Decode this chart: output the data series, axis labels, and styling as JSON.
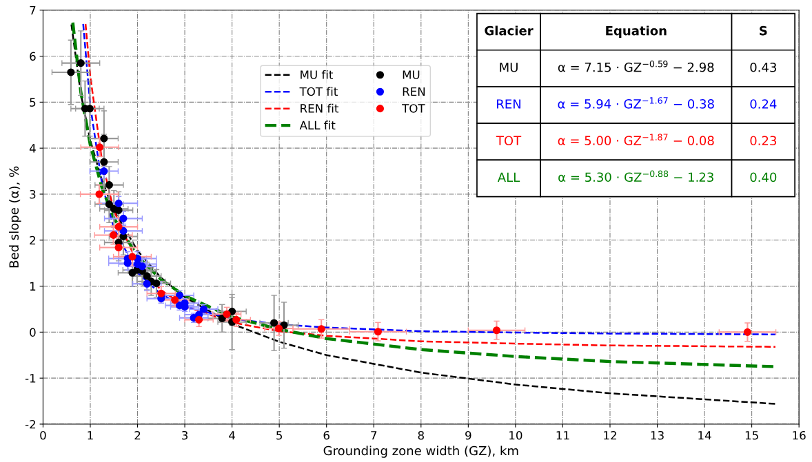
{
  "chart_data": {
    "type": "scatter",
    "xlabel": "Grounding zone width (GZ), km",
    "ylabel": "Bed slope (α), %",
    "xlim": [
      0,
      16
    ],
    "ylim": [
      -2,
      7
    ],
    "xticks": [
      0,
      1,
      2,
      3,
      4,
      5,
      6,
      7,
      8,
      9,
      10,
      11,
      12,
      13,
      14,
      15,
      16
    ],
    "yticks": [
      -2,
      -1,
      0,
      1,
      2,
      3,
      4,
      5,
      6,
      7
    ],
    "grid": true,
    "legend": "top",
    "marker": "circle",
    "series": [
      {
        "name": "MU fit",
        "type": "line",
        "line_style": "dashed",
        "marker": "none",
        "color": "#000000",
        "x": [
          0.6,
          0.8,
          1,
          1.25,
          1.5,
          2,
          2.5,
          3,
          4,
          5,
          6,
          8,
          10,
          12,
          15.5
        ],
        "values": [
          6.69,
          5.18,
          4.17,
          3.29,
          2.65,
          1.77,
          1.18,
          0.76,
          0.18,
          -0.21,
          -0.5,
          -0.88,
          -1.14,
          -1.33,
          -1.56
        ]
      },
      {
        "name": "TOT fit",
        "type": "line",
        "line_style": "dashed",
        "marker": "none",
        "color": "#0000ff",
        "x": [
          0.85,
          1,
          1.25,
          1.5,
          2,
          2.5,
          3,
          4,
          5,
          6,
          8,
          10,
          12,
          15.5
        ],
        "values": [
          6.7,
          4.92,
          3.21,
          2.26,
          1.29,
          0.82,
          0.56,
          0.29,
          0.17,
          0.1,
          0.02,
          -0.01,
          -0.03,
          -0.05
        ]
      },
      {
        "name": "REN fit",
        "type": "line",
        "line_style": "dashed",
        "marker": "none",
        "color": "#ff0000",
        "x": [
          0.9,
          1,
          1.25,
          1.5,
          2,
          2.5,
          3,
          4,
          5,
          6,
          8,
          10,
          12,
          15.5
        ],
        "values": [
          6.7,
          5.56,
          3.71,
          2.64,
          1.49,
          0.91,
          0.57,
          0.21,
          0.02,
          -0.08,
          -0.2,
          -0.25,
          -0.29,
          -0.32
        ]
      },
      {
        "name": "ALL fit",
        "type": "line",
        "line_style": "dashed",
        "marker": "none",
        "color": "#008000",
        "x": [
          0.63,
          0.8,
          1,
          1.25,
          1.5,
          2,
          2.5,
          3,
          4,
          5,
          6,
          8,
          10,
          12,
          15.5
        ],
        "values": [
          6.73,
          5.22,
          4.07,
          3.13,
          2.48,
          1.65,
          1.14,
          0.79,
          0.33,
          0.06,
          -0.14,
          -0.38,
          -0.53,
          -0.64,
          -0.75
        ]
      },
      {
        "name": "MU",
        "color": "#000000",
        "x": [
          0.59,
          0.8,
          0.89,
          0.99,
          1.29,
          1.29,
          1.4,
          1.4,
          1.5,
          1.6,
          1.7,
          1.6,
          1.89,
          1.99,
          2.1,
          2.2,
          2.29,
          2.4,
          3.79,
          4.0,
          4.0,
          4.89,
          5.1
        ],
        "values": [
          5.65,
          5.85,
          4.86,
          4.86,
          4.21,
          3.7,
          3.2,
          2.78,
          2.68,
          2.65,
          2.08,
          1.95,
          1.29,
          1.35,
          1.33,
          1.22,
          1.1,
          1.06,
          0.3,
          0.45,
          0.22,
          0.2,
          0.15
        ],
        "errors": [
          0.7,
          0.7,
          0.6,
          0.6,
          0.6,
          0.6,
          0.4,
          0.4,
          0.4,
          0.4,
          0.4,
          0.4,
          0.3,
          0.3,
          0.3,
          0.3,
          0.3,
          0.3,
          0.3,
          0.3,
          0.6,
          0.6,
          0.5
        ],
        "xerrors": [
          0.4,
          0.4,
          0.3,
          0.3,
          0.3,
          0.3,
          0.3,
          0.3,
          0.3,
          0.3,
          0.3,
          0.3,
          0.3,
          0.3,
          0.3,
          0.3,
          0.3,
          0.3,
          0.3,
          0.3,
          0.3,
          0.3,
          0.3
        ]
      },
      {
        "name": "REN",
        "color": "#0000ff",
        "x": [
          1.29,
          1.6,
          1.7,
          1.7,
          1.79,
          2.0,
          1.79,
          2.0,
          2.1,
          2.2,
          2.5,
          2.89,
          2.89,
          3.0,
          3.0,
          3.19,
          3.3,
          3.4
        ],
        "values": [
          3.5,
          2.8,
          2.47,
          2.2,
          1.6,
          1.6,
          1.5,
          1.48,
          1.43,
          1.05,
          0.73,
          0.8,
          0.58,
          0.63,
          0.55,
          0.31,
          0.38,
          0.5
        ],
        "errors": [
          0.15,
          0.15,
          0.15,
          0.15,
          0.15,
          0.15,
          0.15,
          0.15,
          0.15,
          0.15,
          0.1,
          0.1,
          0.1,
          0.1,
          0.1,
          0.1,
          0.1,
          0.1
        ],
        "xerrors": [
          0.3,
          0.4,
          0.4,
          0.4,
          0.4,
          0.4,
          0.4,
          0.4,
          0.3,
          0.3,
          0.3,
          0.3,
          0.3,
          0.3,
          0.3,
          0.3,
          0.3,
          0.3
        ]
      },
      {
        "name": "TOT",
        "color": "#ff0000",
        "x": [
          1.2,
          1.19,
          1.6,
          1.49,
          1.6,
          1.89,
          2.5,
          2.79,
          3.3,
          3.89,
          4.09,
          4.99,
          5.89,
          7.09,
          9.6,
          14.91
        ],
        "values": [
          4.02,
          3.0,
          2.29,
          2.11,
          1.84,
          1.64,
          0.84,
          0.7,
          0.27,
          0.39,
          0.27,
          0.08,
          0.07,
          0.01,
          0.04,
          0.0
        ],
        "errors": [
          0.2,
          0.2,
          0.2,
          0.2,
          0.2,
          0.2,
          0.15,
          0.15,
          0.15,
          0.15,
          0.15,
          0.15,
          0.2,
          0.2,
          0.2,
          0.2
        ],
        "xerrors": [
          0.4,
          0.4,
          0.4,
          0.4,
          0.4,
          0.4,
          0.3,
          0.3,
          0.3,
          0.3,
          0.3,
          0.3,
          0.6,
          0.6,
          0.6,
          0.6
        ]
      }
    ],
    "annotations": [
      "Glacier",
      "Equation",
      "S",
      "MU",
      "α = 7.15 · GZ$^{−0.59}$ − 2.98",
      "0.43",
      "REN",
      "α = 5.94 · GZ$^{−1.67}$ − 0.38",
      "0.24",
      "TOT",
      "α = 5.00 · GZ$^{−1.87}$ − 0.08",
      "0.23",
      "ALL",
      "α = 5.30 · GZ$^{−0.88}$ − 1.23",
      "0.40"
    ]
  }
}
